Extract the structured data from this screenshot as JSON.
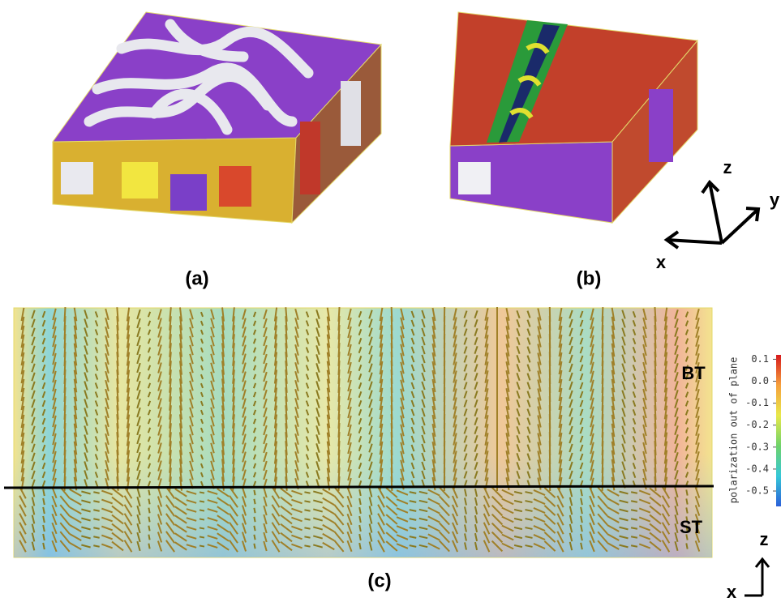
{
  "panels": {
    "a": {
      "label": "(a)"
    },
    "b": {
      "label": "(b)"
    },
    "c": {
      "label": "(c)",
      "top_layer": "BT",
      "bottom_layer": "ST"
    }
  },
  "axes_3d": {
    "x": "x",
    "y": "y",
    "z": "z"
  },
  "axes_2d": {
    "x": "x",
    "z": "z"
  },
  "colorbar": {
    "label": "polarization out of plane",
    "clim": [
      -0.57,
      0.12
    ],
    "ticks": [
      0.1,
      {
        "value": 0,
        "label": "0.0"
      },
      -0.1,
      -0.2,
      -0.3,
      -0.4,
      -0.5
    ]
  }
}
